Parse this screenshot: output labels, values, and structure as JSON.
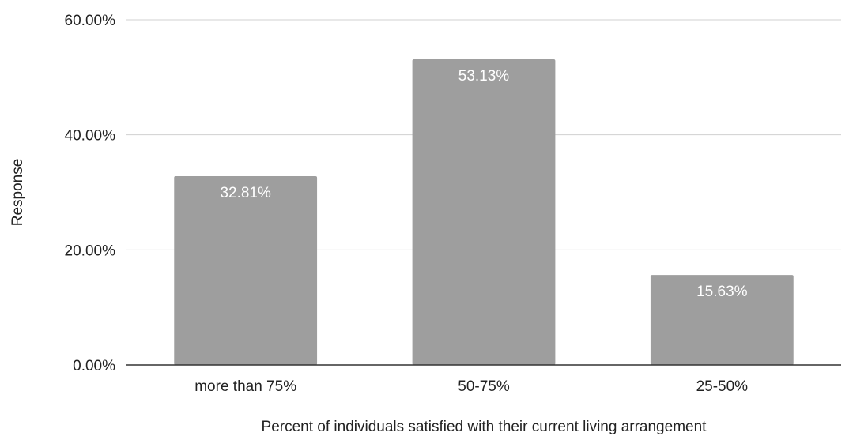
{
  "chart_data": {
    "type": "bar",
    "title": "",
    "xlabel": "Percent of individuals satisfied with their current living arrangement",
    "ylabel": "Response",
    "categories": [
      "more than 75%",
      "50-75%",
      "25-50%"
    ],
    "values": [
      32.81,
      53.13,
      15.63
    ],
    "data_labels": [
      "32.81%",
      "53.13%",
      "15.63%"
    ],
    "ylim": [
      0,
      60
    ],
    "yticks": [
      0,
      20,
      40,
      60
    ],
    "ytick_labels": [
      "0.00%",
      "20.00%",
      "40.00%",
      "60.00%"
    ],
    "bar_color": "#9e9e9e",
    "grid": true,
    "legend": "none"
  }
}
